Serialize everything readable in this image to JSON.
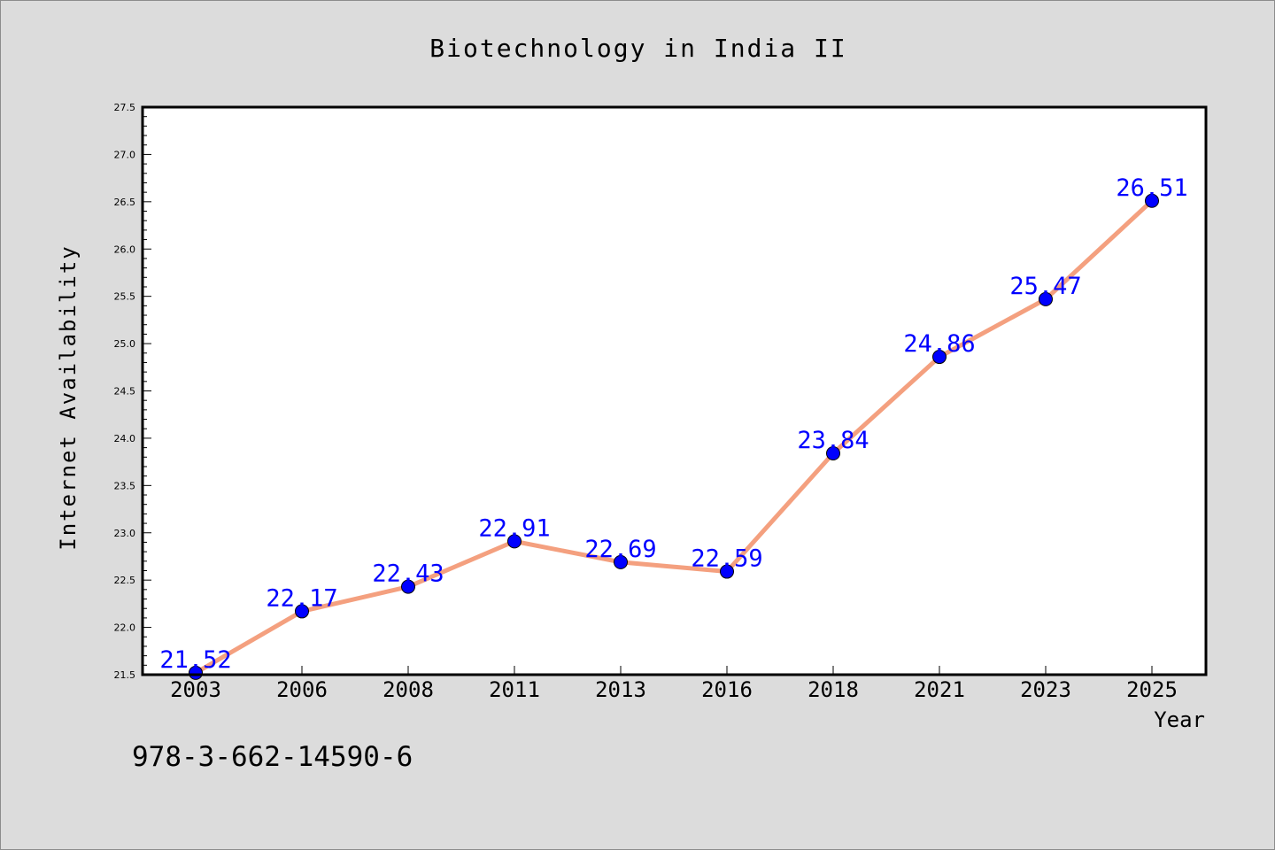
{
  "chart_data": {
    "type": "line",
    "title": "Biotechnology in India II",
    "xlabel": "Year",
    "ylabel": "Internet Availability",
    "categories": [
      "2003",
      "2006",
      "2008",
      "2011",
      "2013",
      "2016",
      "2018",
      "2021",
      "2023",
      "2025"
    ],
    "series": [
      {
        "values": [
          21.52,
          22.17,
          22.43,
          22.91,
          22.69,
          22.59,
          23.84,
          24.86,
          25.47,
          26.51
        ],
        "data_labels": [
          "21.52",
          "22.17",
          "22.43",
          "22.91",
          "22.69",
          "22.59",
          "23.84",
          "24.86",
          "25.47",
          "26.51"
        ],
        "line_color": "#f4a07f",
        "marker_color": "#0000ff"
      }
    ],
    "ylim": [
      21.5,
      27.5
    ],
    "yticks": [
      "21.5",
      "22.0",
      "22.5",
      "23.0",
      "23.5",
      "24.0",
      "24.5",
      "25.0",
      "25.5",
      "26.0",
      "26.5",
      "27.0",
      "27.5"
    ],
    "grid": false,
    "legend": "none"
  },
  "annotation": "978-3-662-14590-6",
  "colors": {
    "background": "#dcdcdc",
    "plot_area": "#ffffff",
    "line": "#f4a07f",
    "marker": "#0000ff",
    "data_label": "#0000ff",
    "text": "#000000"
  }
}
